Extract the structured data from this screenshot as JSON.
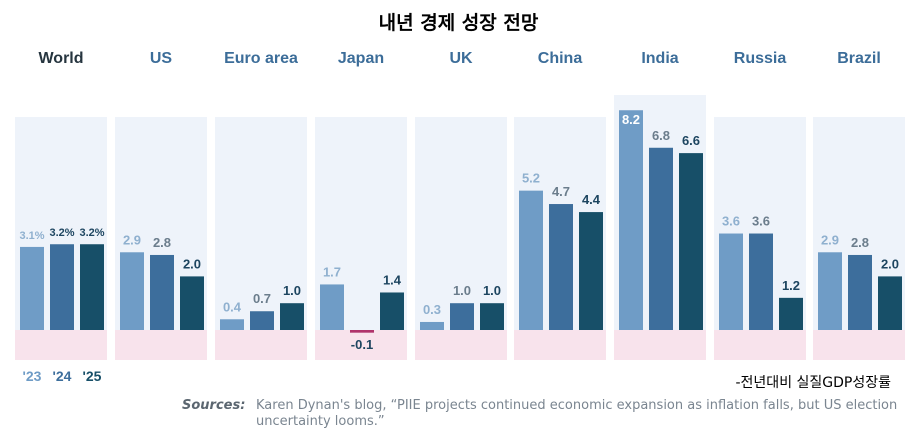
{
  "title": "내년 경제 성장 전망",
  "note": "-전년대비 실질GDP성장률",
  "sources": {
    "label": "Sources:",
    "text": "Karen Dynan's blog, “PIIE projects continued economic expansion as inflation falls, but US election uncertainty looms.”"
  },
  "chart_data": {
    "type": "bar",
    "categories": [
      "World",
      "US",
      "Euro area",
      "Japan",
      "UK",
      "China",
      "India",
      "Russia",
      "Brazil"
    ],
    "series": [
      {
        "name": "'23",
        "values": [
          3.1,
          2.9,
          0.4,
          1.7,
          0.3,
          5.2,
          8.2,
          3.6,
          2.9
        ],
        "labels": [
          "3.1%",
          "2.9",
          "0.4",
          "1.7",
          "0.3",
          "5.2",
          "8.2",
          "3.6",
          "2.9"
        ],
        "color": "#6f9cc6"
      },
      {
        "name": "'24",
        "values": [
          3.2,
          2.8,
          0.7,
          -0.1,
          1.0,
          4.7,
          6.8,
          3.6,
          2.8
        ],
        "labels": [
          "3.2%",
          "2.8",
          "0.7",
          "-0.1",
          "1.0",
          "4.7",
          "6.8",
          "3.6",
          "2.8"
        ],
        "color": "#3d6e9c"
      },
      {
        "name": "'25",
        "values": [
          3.2,
          2.0,
          1.0,
          1.4,
          1.0,
          4.4,
          6.6,
          1.2,
          2.0
        ],
        "labels": [
          "3.2%",
          "2.0",
          "1.0",
          "1.4",
          "1.0",
          "4.4",
          "6.6",
          "1.2",
          "2.0"
        ],
        "color": "#174f68"
      }
    ],
    "negative_color": "#b0336b",
    "panel_color": "#eef3fa",
    "negative_band_color": "#f8e3ec",
    "title_color": "#3c6d99",
    "world_title_color": "#26353f",
    "label_color": "#8fb0cf",
    "dark_label_color": "#1d4560",
    "legend_placement": "bottom-left",
    "grid": false
  }
}
